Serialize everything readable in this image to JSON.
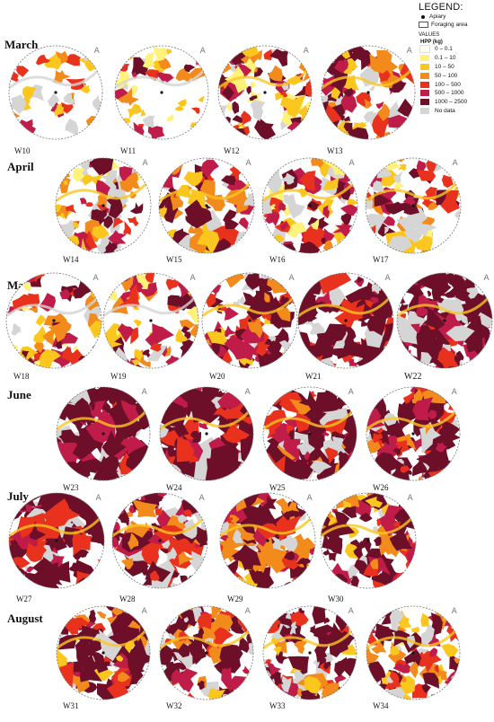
{
  "legend": {
    "title": "LEGEND:",
    "apiary": "Apiary",
    "foraging_area": "Foraging area",
    "values_header": "VALUES",
    "unit": "HPP (kg)",
    "classes": [
      {
        "label": "0 – 0.1",
        "color": "#fdfdf0"
      },
      {
        "label": "0.1 – 10",
        "color": "#fff27a"
      },
      {
        "label": "10 – 50",
        "color": "#fbc61e"
      },
      {
        "label": "50 – 100",
        "color": "#f28a1c"
      },
      {
        "label": "100 – 500",
        "color": "#e8321e"
      },
      {
        "label": "500 – 1000",
        "color": "#c01c4a"
      },
      {
        "label": "1000 – 2500",
        "color": "#6e0f2a"
      },
      {
        "label": "No data",
        "color": "#d5d5d5"
      }
    ]
  },
  "north_symbol": "A",
  "months": [
    {
      "name": "March",
      "weeks": [
        {
          "label": "W10",
          "level": 0.1
        },
        {
          "label": "W11",
          "level": 0.15
        },
        {
          "label": "W12",
          "level": 0.35
        },
        {
          "label": "W13",
          "level": 0.5
        }
      ]
    },
    {
      "name": "April",
      "weeks": [
        {
          "label": "W14",
          "level": 0.45
        },
        {
          "label": "W15",
          "level": 0.5
        },
        {
          "label": "W16",
          "level": 0.4
        },
        {
          "label": "W17",
          "level": 0.38
        }
      ]
    },
    {
      "name": "May",
      "weeks": [
        {
          "label": "W18",
          "level": 0.3
        },
        {
          "label": "W19",
          "level": 0.3
        },
        {
          "label": "W20",
          "level": 0.55
        },
        {
          "label": "W21",
          "level": 0.78
        },
        {
          "label": "W22",
          "level": 0.85
        }
      ]
    },
    {
      "name": "June",
      "weeks": [
        {
          "label": "W23",
          "level": 0.9
        },
        {
          "label": "W24",
          "level": 0.85
        },
        {
          "label": "W25",
          "level": 0.75
        },
        {
          "label": "W26",
          "level": 0.75
        }
      ]
    },
    {
      "name": "July",
      "weeks": [
        {
          "label": "W27",
          "level": 0.8
        },
        {
          "label": "W28",
          "level": 0.65
        },
        {
          "label": "W29",
          "level": 0.6
        },
        {
          "label": "W30",
          "level": 0.55
        }
      ]
    },
    {
      "name": "August",
      "weeks": [
        {
          "label": "W31",
          "level": 0.55
        },
        {
          "label": "W32",
          "level": 0.55
        },
        {
          "label": "W33",
          "level": 0.5
        },
        {
          "label": "W34",
          "level": 0.45
        }
      ]
    }
  ]
}
